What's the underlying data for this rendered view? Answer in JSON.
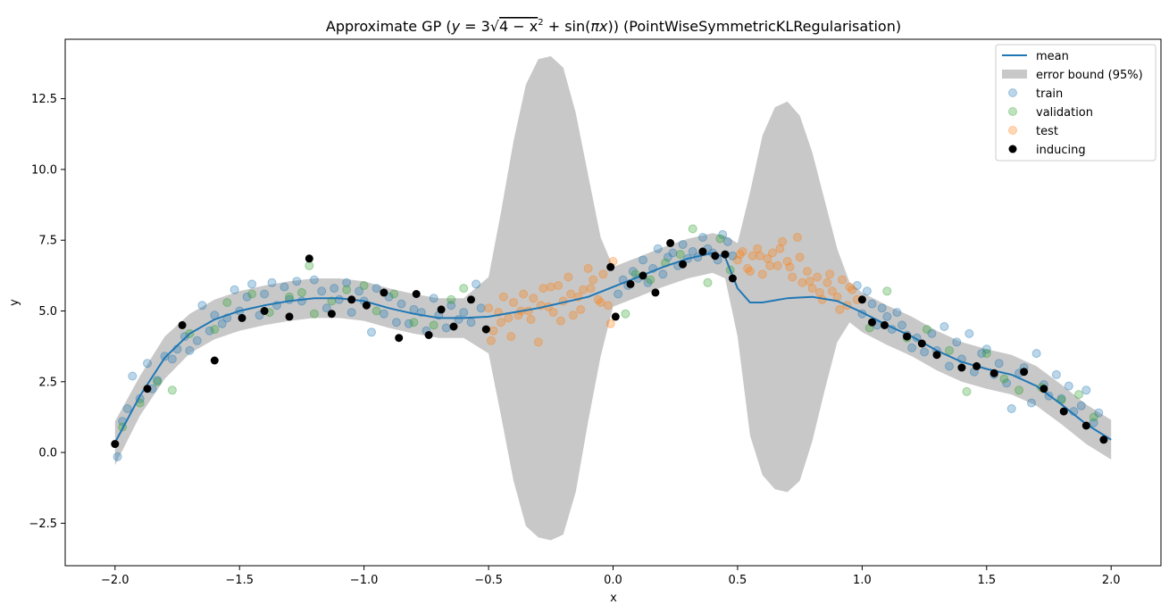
{
  "chart_data": {
    "type": "line",
    "title": "Approximate GP (y = 3√(4 − x²) + sin(πx)) (PointWiseSymmetricKLRegularisation)",
    "title_parts": {
      "prefix": "Approximate GP (",
      "math_y": "y",
      "math_eq": " = 3",
      "math_radicand": "4 − x",
      "math_exp": "2",
      "math_plus": " + sin(",
      "math_pi": "π",
      "math_x": "x",
      "math_close": "))",
      "suffix": " (PointWiseSymmetricKLRegularisation)"
    },
    "xlabel": "x",
    "ylabel": "y",
    "xlim": [
      -2.2,
      2.2
    ],
    "ylim": [
      -4.0,
      14.6
    ],
    "x_ticks": [
      -2.0,
      -1.5,
      -1.0,
      -0.5,
      0.0,
      0.5,
      1.0,
      1.5,
      2.0
    ],
    "x_tick_labels": [
      "−2.0",
      "−1.5",
      "−1.0",
      "−0.5",
      "0.0",
      "0.5",
      "1.0",
      "1.5",
      "2.0"
    ],
    "y_ticks": [
      -2.5,
      0.0,
      2.5,
      5.0,
      7.5,
      10.0,
      12.5
    ],
    "y_tick_labels": [
      "−2.5",
      "0.0",
      "2.5",
      "5.0",
      "7.5",
      "10.0",
      "12.5"
    ],
    "grid": false,
    "legend_position": "top-right",
    "colors": {
      "mean": "#1f77b4",
      "error_bound": "#c8c8c8",
      "train": "#1f77b4",
      "validation": "#2ca02c",
      "test": "#ff7f0e",
      "inducing": "#000000"
    },
    "series": [
      {
        "name": "mean",
        "kind": "line"
      },
      {
        "name": "error bound (95%)",
        "kind": "band"
      },
      {
        "name": "train",
        "kind": "scatter"
      },
      {
        "name": "validation",
        "kind": "scatter"
      },
      {
        "name": "test",
        "kind": "scatter"
      },
      {
        "name": "inducing",
        "kind": "scatter"
      }
    ],
    "mean": {
      "x": [
        -2.0,
        -1.9,
        -1.8,
        -1.7,
        -1.6,
        -1.5,
        -1.4,
        -1.3,
        -1.2,
        -1.1,
        -1.0,
        -0.9,
        -0.8,
        -0.7,
        -0.6,
        -0.5,
        -0.4,
        -0.3,
        -0.2,
        -0.1,
        0.0,
        0.1,
        0.2,
        0.3,
        0.4,
        0.45,
        0.5,
        0.55,
        0.6,
        0.7,
        0.8,
        0.9,
        1.0,
        1.1,
        1.2,
        1.3,
        1.4,
        1.5,
        1.6,
        1.7,
        1.8,
        1.9,
        2.0
      ],
      "y": [
        0.35,
        2.0,
        3.35,
        4.2,
        4.7,
        5.0,
        5.2,
        5.35,
        5.45,
        5.45,
        5.35,
        5.1,
        4.9,
        4.75,
        4.75,
        4.8,
        4.95,
        5.1,
        5.3,
        5.5,
        5.85,
        6.2,
        6.55,
        6.85,
        7.05,
        6.9,
        5.8,
        5.3,
        5.3,
        5.45,
        5.5,
        5.35,
        4.95,
        4.5,
        4.1,
        3.6,
        3.2,
        2.95,
        2.75,
        2.35,
        1.7,
        1.0,
        0.45
      ]
    },
    "error_bound": {
      "x": [
        -2.0,
        -1.9,
        -1.8,
        -1.7,
        -1.6,
        -1.5,
        -1.4,
        -1.3,
        -1.2,
        -1.1,
        -1.0,
        -0.9,
        -0.8,
        -0.7,
        -0.6,
        -0.5,
        -0.45,
        -0.4,
        -0.35,
        -0.3,
        -0.25,
        -0.2,
        -0.15,
        -0.1,
        -0.05,
        0.0,
        0.1,
        0.2,
        0.3,
        0.4,
        0.45,
        0.5,
        0.55,
        0.6,
        0.65,
        0.7,
        0.75,
        0.8,
        0.85,
        0.9,
        0.95,
        1.0,
        1.1,
        1.2,
        1.3,
        1.4,
        1.5,
        1.6,
        1.7,
        1.8,
        1.9,
        2.0
      ],
      "upper": [
        1.1,
        2.7,
        4.1,
        4.9,
        5.4,
        5.7,
        5.9,
        6.05,
        6.15,
        6.15,
        6.05,
        5.8,
        5.6,
        5.45,
        5.45,
        6.2,
        8.5,
        11.0,
        13.0,
        13.9,
        14.0,
        13.6,
        12.0,
        9.8,
        7.6,
        6.55,
        6.9,
        7.25,
        7.55,
        7.75,
        7.65,
        7.4,
        9.2,
        11.2,
        12.2,
        12.4,
        11.9,
        10.6,
        8.9,
        7.2,
        6.0,
        5.65,
        5.2,
        4.8,
        4.3,
        3.9,
        3.65,
        3.45,
        3.05,
        2.4,
        1.7,
        1.15
      ],
      "lower": [
        -0.45,
        1.3,
        2.6,
        3.5,
        4.0,
        4.3,
        4.5,
        4.65,
        4.75,
        4.75,
        4.65,
        4.4,
        4.2,
        4.05,
        4.05,
        3.5,
        1.3,
        -1.0,
        -2.6,
        -3.0,
        -3.1,
        -2.9,
        -1.4,
        1.1,
        3.4,
        5.15,
        5.5,
        5.85,
        6.15,
        6.35,
        6.15,
        4.1,
        0.6,
        -0.8,
        -1.3,
        -1.4,
        -1.0,
        0.4,
        2.2,
        3.9,
        4.6,
        4.25,
        3.8,
        3.4,
        2.9,
        2.5,
        2.25,
        2.05,
        1.65,
        1.0,
        0.3,
        -0.25
      ]
    },
    "inducing_points": {
      "x": [
        -2.0,
        -1.87,
        -1.73,
        -1.6,
        -1.49,
        -1.4,
        -1.3,
        -1.22,
        -1.13,
        -1.05,
        -0.99,
        -0.92,
        -0.86,
        -0.79,
        -0.74,
        -0.69,
        -0.64,
        -0.57,
        -0.51,
        -0.01,
        0.01,
        0.07,
        0.12,
        0.17,
        0.23,
        0.28,
        0.36,
        0.41,
        0.45,
        0.48,
        1.0,
        1.04,
        1.09,
        1.18,
        1.24,
        1.3,
        1.4,
        1.46,
        1.53,
        1.65,
        1.73,
        1.81,
        1.9,
        1.97
      ],
      "y": [
        0.3,
        2.25,
        4.5,
        3.25,
        4.75,
        5.0,
        4.8,
        6.85,
        4.9,
        5.4,
        5.2,
        5.65,
        4.05,
        5.6,
        4.15,
        5.05,
        4.45,
        5.4,
        4.35,
        6.55,
        4.8,
        5.95,
        6.25,
        5.65,
        7.4,
        6.65,
        7.1,
        6.95,
        7.0,
        6.15,
        5.4,
        4.6,
        4.5,
        4.1,
        3.85,
        3.45,
        3.0,
        3.05,
        2.8,
        2.85,
        2.25,
        1.45,
        0.95,
        0.45
      ]
    },
    "train_points": {
      "x": [
        -1.99,
        -1.97,
        -1.95,
        -1.93,
        -1.9,
        -1.87,
        -1.85,
        -1.83,
        -1.8,
        -1.77,
        -1.75,
        -1.72,
        -1.7,
        -1.67,
        -1.65,
        -1.62,
        -1.6,
        -1.57,
        -1.55,
        -1.52,
        -1.5,
        -1.47,
        -1.45,
        -1.42,
        -1.4,
        -1.37,
        -1.35,
        -1.32,
        -1.3,
        -1.27,
        -1.25,
        -1.2,
        -1.17,
        -1.15,
        -1.12,
        -1.1,
        -1.07,
        -1.05,
        -1.02,
        -1.0,
        -0.97,
        -0.95,
        -0.92,
        -0.9,
        -0.87,
        -0.85,
        -0.82,
        -0.8,
        -0.77,
        -0.75,
        -0.72,
        -0.7,
        -0.67,
        -0.65,
        -0.62,
        -0.6,
        -0.57,
        -0.55,
        -0.53,
        0.02,
        0.04,
        0.06,
        0.08,
        0.1,
        0.12,
        0.14,
        0.16,
        0.18,
        0.2,
        0.22,
        0.24,
        0.26,
        0.28,
        0.3,
        0.32,
        0.34,
        0.36,
        0.38,
        0.4,
        0.42,
        0.44,
        0.46,
        0.48,
        0.98,
        1.0,
        1.02,
        1.04,
        1.06,
        1.08,
        1.1,
        1.12,
        1.14,
        1.16,
        1.18,
        1.2,
        1.22,
        1.25,
        1.28,
        1.3,
        1.33,
        1.35,
        1.38,
        1.4,
        1.43,
        1.45,
        1.48,
        1.5,
        1.53,
        1.55,
        1.58,
        1.6,
        1.63,
        1.65,
        1.68,
        1.7,
        1.73,
        1.75,
        1.78,
        1.8,
        1.83,
        1.85,
        1.88,
        1.9,
        1.93,
        1.95
      ],
      "y": [
        -0.15,
        1.1,
        1.55,
        2.7,
        1.9,
        3.15,
        2.25,
        2.55,
        3.4,
        3.3,
        3.65,
        4.1,
        3.6,
        3.95,
        5.2,
        4.3,
        4.85,
        4.55,
        4.75,
        5.75,
        5.0,
        5.5,
        5.95,
        4.85,
        5.6,
        6.0,
        5.2,
        5.85,
        5.4,
        6.05,
        5.35,
        6.1,
        5.7,
        5.1,
        5.8,
        5.4,
        6.0,
        4.95,
        5.7,
        5.35,
        4.25,
        5.8,
        4.9,
        5.5,
        4.6,
        5.25,
        4.55,
        5.05,
        4.95,
        4.3,
        5.45,
        4.85,
        4.4,
        5.2,
        4.7,
        4.95,
        4.6,
        5.95,
        5.1,
        5.6,
        6.1,
        5.9,
        6.4,
        6.15,
        6.8,
        6.0,
        6.5,
        7.2,
        6.3,
        6.9,
        7.05,
        6.6,
        7.35,
        6.85,
        7.1,
        6.9,
        7.6,
        7.2,
        7.05,
        6.8,
        7.7,
        7.45,
        6.95,
        5.9,
        4.9,
        5.7,
        5.25,
        4.5,
        5.1,
        4.8,
        4.35,
        4.95,
        4.5,
        4.15,
        3.7,
        4.05,
        3.55,
        4.2,
        3.6,
        4.45,
        3.05,
        3.9,
        3.3,
        4.2,
        2.85,
        3.5,
        3.65,
        2.75,
        3.15,
        2.45,
        1.55,
        2.8,
        3.0,
        1.75,
        3.5,
        2.4,
        2.0,
        2.75,
        1.9,
        2.35,
        1.45,
        1.65,
        2.2,
        1.05,
        1.4
      ]
    },
    "validation_points": {
      "x": [
        -1.97,
        -1.9,
        -1.83,
        -1.77,
        -1.7,
        -1.6,
        -1.55,
        -1.45,
        -1.38,
        -1.3,
        -1.25,
        -1.22,
        -1.2,
        -1.13,
        -1.07,
        -1.0,
        -0.95,
        -0.88,
        -0.8,
        -0.72,
        -0.65,
        -0.6,
        0.05,
        0.09,
        0.15,
        0.21,
        0.27,
        0.32,
        0.38,
        0.43,
        0.47,
        1.03,
        1.1,
        1.18,
        1.26,
        1.35,
        1.42,
        1.5,
        1.57,
        1.63,
        1.72,
        1.8,
        1.87,
        1.93
      ],
      "y": [
        0.9,
        1.75,
        2.5,
        2.2,
        4.2,
        4.35,
        5.3,
        5.6,
        4.95,
        5.5,
        5.65,
        6.6,
        4.9,
        5.35,
        5.75,
        5.9,
        5.0,
        5.6,
        4.6,
        4.5,
        5.4,
        5.8,
        4.9,
        6.3,
        6.1,
        6.7,
        7.0,
        7.9,
        6.0,
        7.55,
        6.45,
        4.4,
        5.7,
        4.05,
        4.35,
        3.6,
        2.15,
        3.5,
        2.6,
        2.2,
        2.3,
        1.85,
        2.05,
        1.25
      ]
    },
    "test_points": {
      "x": [
        -0.5,
        -0.48,
        -0.46,
        -0.44,
        -0.42,
        -0.4,
        -0.38,
        -0.36,
        -0.34,
        -0.32,
        -0.3,
        -0.28,
        -0.26,
        -0.24,
        -0.22,
        -0.2,
        -0.18,
        -0.16,
        -0.14,
        -0.12,
        -0.1,
        -0.08,
        -0.06,
        -0.04,
        -0.02,
        0.0,
        0.5,
        0.52,
        0.54,
        0.56,
        0.58,
        0.6,
        0.62,
        0.64,
        0.66,
        0.68,
        0.7,
        0.72,
        0.74,
        0.76,
        0.78,
        0.8,
        0.82,
        0.84,
        0.86,
        0.88,
        0.9,
        0.92,
        0.94,
        0.96,
        0.98,
        -0.49,
        -0.45,
        -0.41,
        -0.37,
        -0.33,
        -0.29,
        -0.25,
        -0.21,
        -0.17,
        -0.13,
        -0.09,
        -0.05,
        -0.01,
        0.51,
        0.55,
        0.59,
        0.63,
        0.67,
        0.71,
        0.75,
        0.79,
        0.83,
        0.87,
        0.91,
        0.95
      ],
      "y": [
        5.1,
        4.3,
        4.95,
        5.5,
        4.75,
        5.3,
        4.85,
        5.6,
        5.0,
        5.45,
        3.9,
        5.8,
        5.15,
        4.95,
        5.9,
        5.35,
        6.2,
        4.85,
        5.5,
        5.75,
        6.5,
        6.1,
        5.4,
        6.3,
        5.2,
        6.75,
        6.8,
        7.1,
        6.5,
        6.95,
        7.2,
        6.3,
        6.85,
        7.05,
        6.6,
        7.45,
        6.75,
        6.2,
        7.6,
        6.0,
        6.4,
        5.8,
        6.2,
        5.4,
        6.0,
        5.7,
        5.5,
        6.1,
        5.2,
        5.75,
        5.4,
        3.95,
        4.6,
        4.1,
        5.0,
        4.7,
        5.2,
        5.85,
        4.65,
        5.6,
        5.05,
        5.8,
        5.3,
        4.55,
        7.0,
        6.4,
        6.95,
        6.6,
        7.2,
        6.55,
        6.9,
        6.05,
        5.65,
        6.3,
        5.05,
        5.85
      ]
    }
  },
  "legend": {
    "mean": "mean",
    "error_bound": "error bound (95%)",
    "train": "train",
    "validation": "validation",
    "test": "test",
    "inducing": "inducing"
  }
}
